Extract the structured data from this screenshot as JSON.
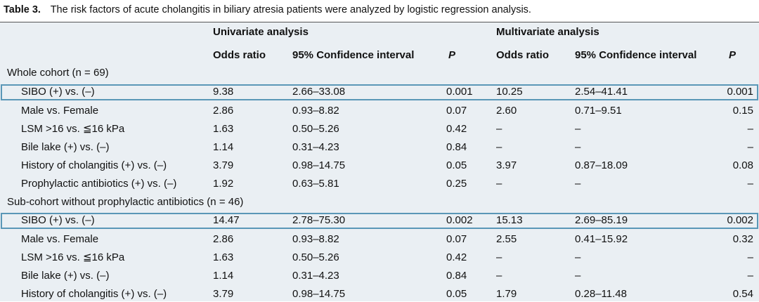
{
  "caption": {
    "label": "Table 3.",
    "text": "The risk factors of acute cholangitis in biliary atresia patients were analyzed by logistic regression analysis."
  },
  "header": {
    "group_uni": "Univariate analysis",
    "group_multi": "Multivariate analysis",
    "or_uni": "Odds ratio",
    "ci_uni": "95% Confidence interval",
    "p_uni": "P",
    "or_multi": "Odds ratio",
    "ci_multi": "95% Confidence interval",
    "p_multi": "P"
  },
  "groups": [
    {
      "title": "Whole cohort (n = 69)",
      "rows": [
        {
          "label": "SIBO (+) vs. (–)",
          "or_u": "9.38",
          "ci_u": "2.66–33.08",
          "p_u": "0.001",
          "or_m": "10.25",
          "ci_m": "2.54–41.41",
          "p_m": "0.001",
          "highlighted": true
        },
        {
          "label": "Male vs. Female",
          "or_u": "2.86",
          "ci_u": "0.93–8.82",
          "p_u": "0.07",
          "or_m": "2.60",
          "ci_m": "0.71–9.51",
          "p_m": "0.15"
        },
        {
          "label": "LSM >16 vs. ≦16 kPa",
          "or_u": "1.63",
          "ci_u": "0.50–5.26",
          "p_u": "0.42",
          "or_m": "–",
          "ci_m": "–",
          "p_m": "–"
        },
        {
          "label": "Bile lake (+) vs. (–)",
          "or_u": "1.14",
          "ci_u": "0.31–4.23",
          "p_u": "0.84",
          "or_m": "–",
          "ci_m": "–",
          "p_m": "–"
        },
        {
          "label": "History of cholangitis (+) vs. (–)",
          "or_u": "3.79",
          "ci_u": "0.98–14.75",
          "p_u": "0.05",
          "or_m": "3.97",
          "ci_m": "0.87–18.09",
          "p_m": "0.08"
        },
        {
          "label": "Prophylactic antibiotics (+) vs. (–)",
          "or_u": "1.92",
          "ci_u": "0.63–5.81",
          "p_u": "0.25",
          "or_m": "–",
          "ci_m": "–",
          "p_m": "–"
        }
      ]
    },
    {
      "title": "Sub-cohort without prophylactic antibiotics (n = 46)",
      "rows": [
        {
          "label": "SIBO (+) vs. (–)",
          "or_u": "14.47",
          "ci_u": "2.78–75.30",
          "p_u": "0.002",
          "or_m": "15.13",
          "ci_m": "2.69–85.19",
          "p_m": "0.002",
          "highlighted": true
        },
        {
          "label": "Male vs. Female",
          "or_u": "2.86",
          "ci_u": "0.93–8.82",
          "p_u": "0.07",
          "or_m": "2.55",
          "ci_m": "0.41–15.92",
          "p_m": "0.32"
        },
        {
          "label": "LSM >16 vs. ≦16 kPa",
          "or_u": "1.63",
          "ci_u": "0.50–5.26",
          "p_u": "0.42",
          "or_m": "–",
          "ci_m": "–",
          "p_m": "–"
        },
        {
          "label": "Bile lake (+) vs. (–)",
          "or_u": "1.14",
          "ci_u": "0.31–4.23",
          "p_u": "0.84",
          "or_m": "–",
          "ci_m": "–",
          "p_m": "–"
        },
        {
          "label": "History of cholangitis (+) vs. (–)",
          "or_u": "3.79",
          "ci_u": "0.98–14.75",
          "p_u": "0.05",
          "or_m": "1.79",
          "ci_m": "0.28–11.48",
          "p_m": "0.54"
        }
      ]
    }
  ],
  "colors": {
    "table_shade": "#eaeff3",
    "highlight_border": "#5a97b7"
  }
}
